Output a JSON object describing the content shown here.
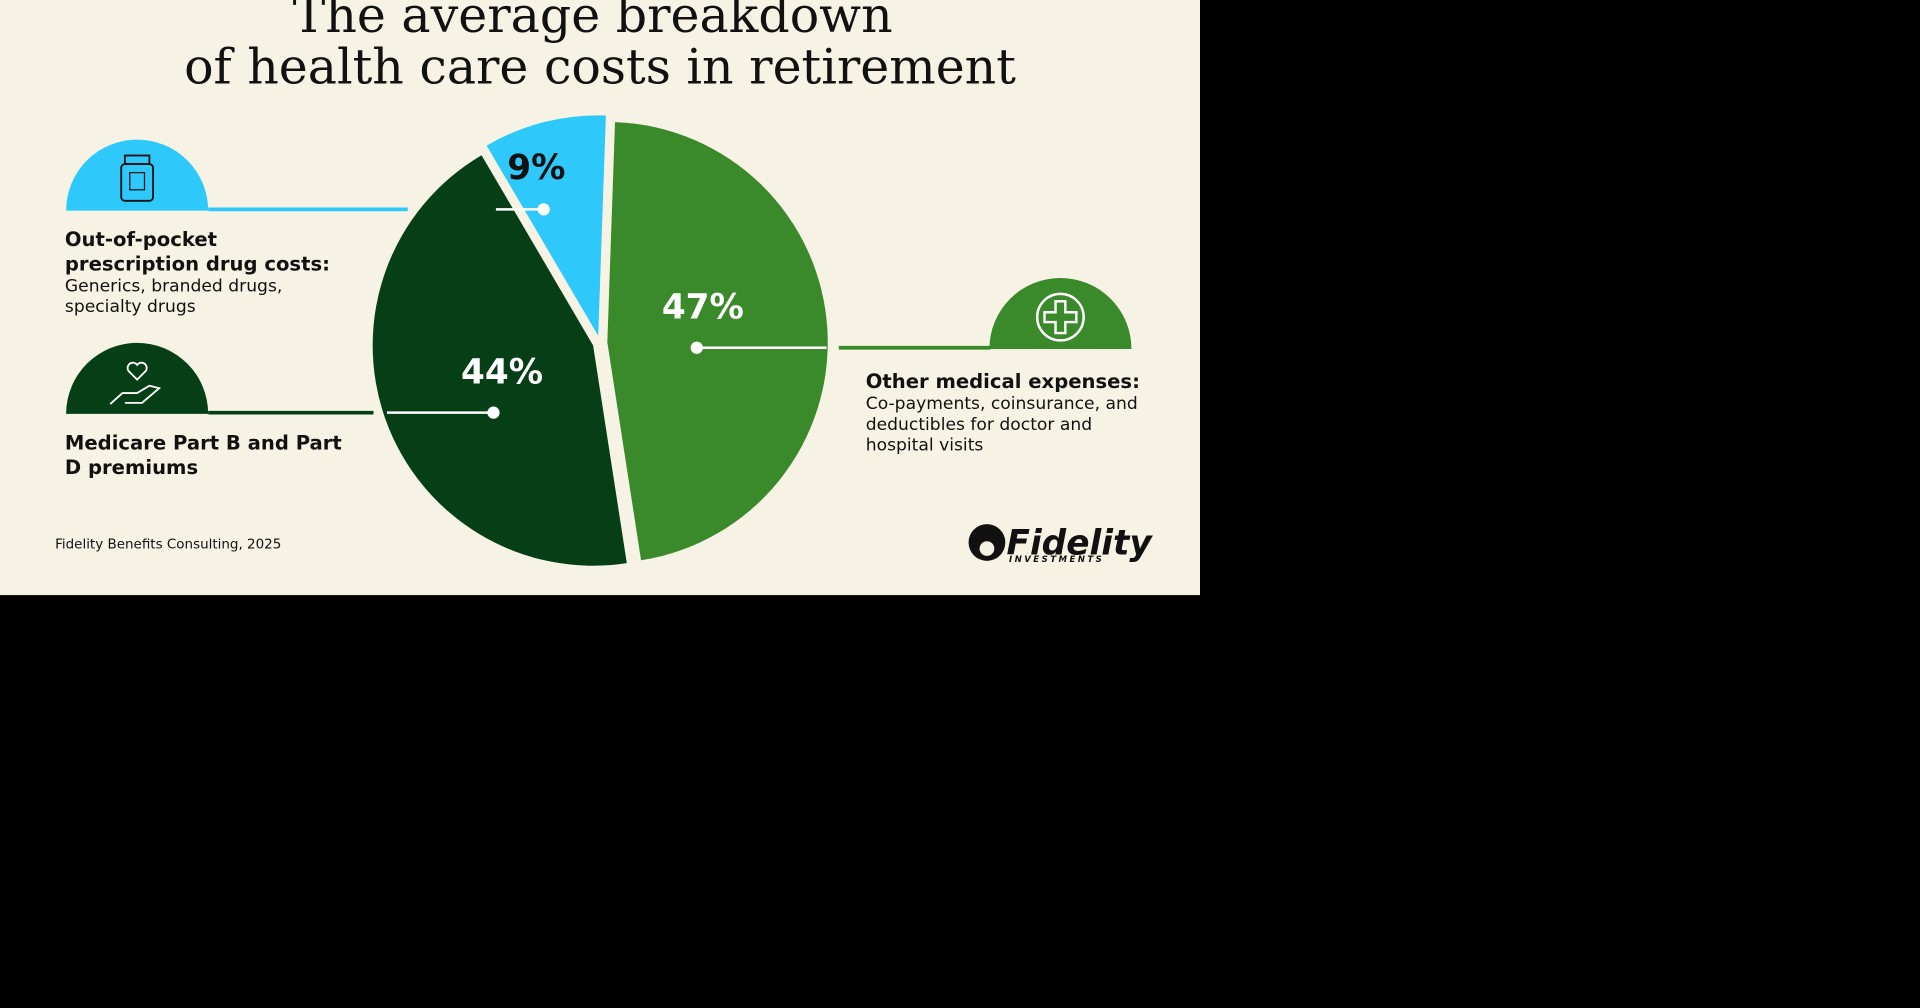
{
  "chart_data": {
    "type": "pie",
    "title": [
      "The average breakdown",
      "of health care costs in retirement"
    ],
    "categories": [
      "Other medical expenses:",
      "Medicare Part B and Part D premiums",
      "Out-of-pocket prescription drug costs:"
    ],
    "descriptions": [
      "Co-payments, coinsurance, and deductibles for doctor and hospital visits",
      null,
      "Generics, branded drugs, specialty drugs"
    ],
    "values": [
      47,
      44,
      9
    ],
    "value_labels": [
      "47%",
      "44%",
      "9%"
    ],
    "colors": [
      "#3a8a2c",
      "#063f16",
      "#2ec8fb"
    ],
    "source": "Fidelity Benefits Consulting, 2025",
    "logo": {
      "name": "Fidelity",
      "tagline": "INVESTMENTS"
    }
  }
}
